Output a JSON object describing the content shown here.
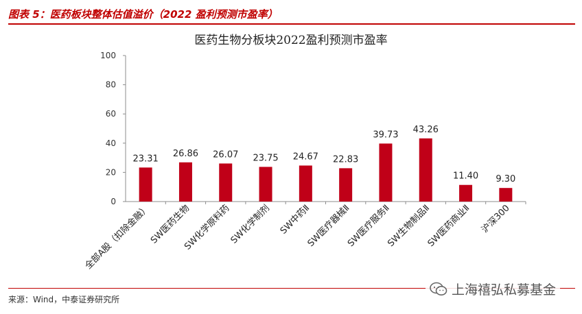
{
  "header": {
    "title": "图表 5：医药板块整体估值溢价（2022 盈利预测市盈率）"
  },
  "chart_data": {
    "type": "bar",
    "title": "医药生物分板块2022盈利预测市盈率",
    "categories": [
      "全部A股（扣除金融）",
      "SW医药生物",
      "SW化学原料药",
      "SW化学制剂",
      "SW中药Ⅱ",
      "SW医疗器械Ⅱ",
      "SW医疗服务Ⅱ",
      "SW生物制品Ⅱ",
      "SW医药商业Ⅱ",
      "沪深300"
    ],
    "values": [
      23.31,
      26.86,
      26.07,
      23.75,
      24.67,
      22.83,
      39.73,
      43.26,
      11.4,
      9.3
    ],
    "value_labels": [
      "23.31",
      "26.86",
      "26.07",
      "23.75",
      "24.67",
      "22.83",
      "39.73",
      "43.26",
      "11.40",
      "9.30"
    ],
    "ylim": [
      0,
      100
    ],
    "yticks": [
      0,
      20,
      40,
      60,
      80,
      100
    ],
    "grid": false,
    "bar_color": "#c00018"
  },
  "footer": {
    "source": "来源：Wind，中泰证券研究所",
    "watermark": "上海禧弘私募基金"
  },
  "colors": {
    "accent": "#c00000"
  }
}
